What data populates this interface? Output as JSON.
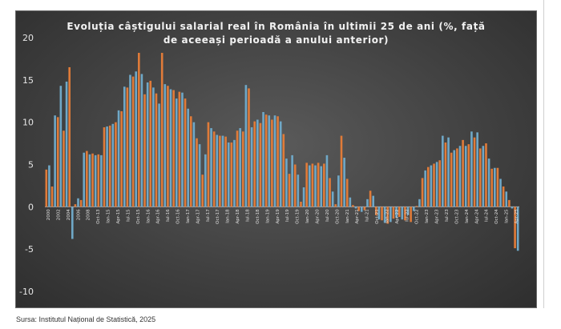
{
  "chart_data": {
    "type": "bar",
    "title_lines": [
      "Evoluția câștigului salarial real în România în ultimii 25 de ani (%, față",
      "de aceeași perioadă a anului anterior)"
    ],
    "ylim": [
      -10,
      20
    ],
    "yticks": [
      -10,
      -5,
      0,
      5,
      10,
      15,
      20
    ],
    "grid": false,
    "colors": [
      "#e07b39",
      "#6fa8c7"
    ],
    "x_tick_labels": [
      "2000",
      "2002",
      "2004",
      "2006",
      "2008",
      "Oct-13",
      "Ian-15",
      "Apr-15",
      "Iul-15",
      "Oct-15",
      "Ian-16",
      "Apr-16",
      "Iul-16",
      "Oct-16",
      "Ian-17",
      "Apr-17",
      "Iul-17",
      "Oct-17",
      "Ian-18",
      "Apr-18",
      "Iul-18",
      "Oct-18",
      "Ian-19",
      "Apr-19",
      "Iul-19",
      "Oct-19",
      "Ian-20",
      "Apr-20",
      "Iul-20",
      "Oct-20",
      "Ian-21",
      "Apr-21",
      "Iul-21",
      "Oct-21",
      "Ian-22",
      "Apr-22",
      "Iul-22",
      "Oct-22",
      "Ian-23",
      "Apr-23",
      "Iul-23",
      "Oct-23",
      "Ian-24",
      "Apr-24",
      "Iul-24",
      "Oct-24",
      "Ian-25",
      "Apr-25"
    ],
    "values": [
      4.4,
      4.9,
      2.4,
      10.8,
      10.6,
      14.3,
      9.0,
      14.8,
      16.5,
      -3.8,
      0.3,
      1.0,
      0.8,
      6.4,
      6.6,
      6.2,
      6.3,
      6.1,
      6.2,
      6.1,
      9.4,
      9.5,
      9.6,
      9.8,
      10.0,
      11.4,
      11.3,
      14.2,
      14.1,
      15.6,
      15.4,
      16.0,
      18.2,
      15.7,
      13.3,
      14.7,
      14.9,
      14.1,
      13.4,
      12.2,
      18.2,
      14.5,
      14.3,
      13.9,
      13.8,
      12.8,
      13.6,
      13.5,
      12.8,
      11.6,
      10.7,
      10.0,
      8.1,
      7.4,
      3.8,
      6.2,
      10.0,
      9.3,
      8.9,
      8.5,
      8.4,
      8.4,
      8.3,
      7.6,
      7.6,
      7.9,
      9.0,
      9.3,
      8.9,
      14.4,
      14.0,
      9.4,
      10.1,
      10.3,
      9.9,
      11.2,
      10.9,
      10.8,
      10.3,
      10.8,
      10.7,
      10.1,
      8.6,
      5.7,
      3.9,
      6.1,
      5.0,
      3.8,
      0.6,
      2.3,
      5.2,
      4.9,
      5.1,
      4.9,
      5.2,
      4.8,
      5.1,
      6.1,
      3.4,
      1.8,
      0.3,
      3.7,
      8.4,
      5.8,
      3.3,
      1.1,
      0.2,
      -0.2,
      -0.5,
      -0.6,
      -0.4,
      0.9,
      1.9,
      1.3,
      -1.0,
      -1.5,
      -1.6,
      -1.9,
      -2.0,
      -1.8,
      -1.4,
      -1.3,
      -1.2,
      -1.5,
      -1.6,
      -1.0,
      -1.8,
      -0.5,
      0.1,
      0.9,
      3.4,
      4.3,
      4.7,
      4.9,
      5.1,
      5.3,
      5.5,
      8.4,
      7.6,
      8.2,
      6.4,
      6.7,
      6.9,
      7.2,
      7.9,
      7.2,
      7.4,
      8.9,
      8.2,
      8.8,
      6.9,
      7.2,
      7.5,
      5.7,
      4.5,
      4.6,
      4.6,
      3.3,
      2.4,
      1.8,
      0.8,
      -0.2,
      -4.9,
      -5.2
    ]
  },
  "source_text": "Sursa: Institutul Național de Statistică, 2025"
}
